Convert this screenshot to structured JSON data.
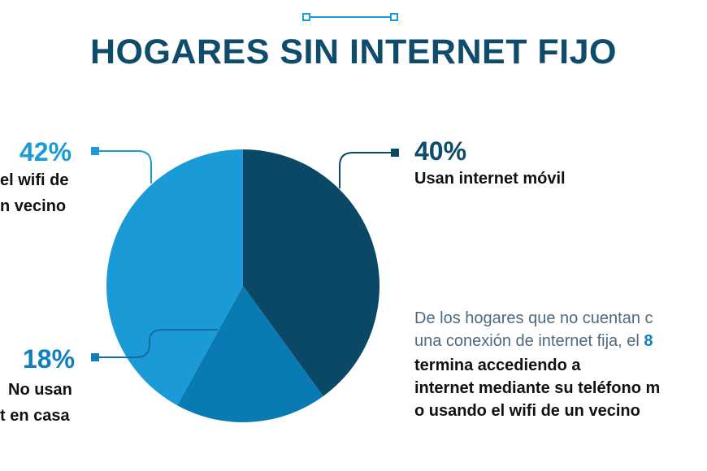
{
  "title": "HOGARES SIN INTERNET FIJO",
  "colors": {
    "title": "#0f4c6b",
    "dark": "#0f4c6b",
    "light": "#1a9ad6",
    "mid": "#0f7fc0"
  },
  "chart_data": {
    "type": "pie",
    "title": "HOGARES SIN INTERNET FIJO",
    "slices": [
      {
        "label": "Usan internet móvil",
        "value": 40,
        "percent_label": "40%",
        "color": "#0b4866"
      },
      {
        "label": "No usan internet en casa",
        "value": 18,
        "percent_label": "18%",
        "color": "#0a7ab3"
      },
      {
        "label": "Usan el wifi de un vecino",
        "value": 42,
        "percent_label": "42%",
        "color": "#1b9ad8"
      }
    ]
  },
  "annotations": {
    "left_top": {
      "percent": "42%",
      "line1": "el wifi de",
      "line2": "n vecino"
    },
    "right": {
      "percent": "40%",
      "line1": "Usan internet móvil"
    },
    "left_bottom": {
      "percent": "18%",
      "line1": "No usan",
      "line2": "t en casa"
    }
  },
  "description": {
    "line1": "De los hogares que no cuentan c",
    "line2_text": "una conexión de internet fija, el ",
    "line2_highlight": "8",
    "line3": "termina accediendo a",
    "line4": "internet mediante su teléfono m",
    "line5": "o usando el wifi de un vecino"
  }
}
